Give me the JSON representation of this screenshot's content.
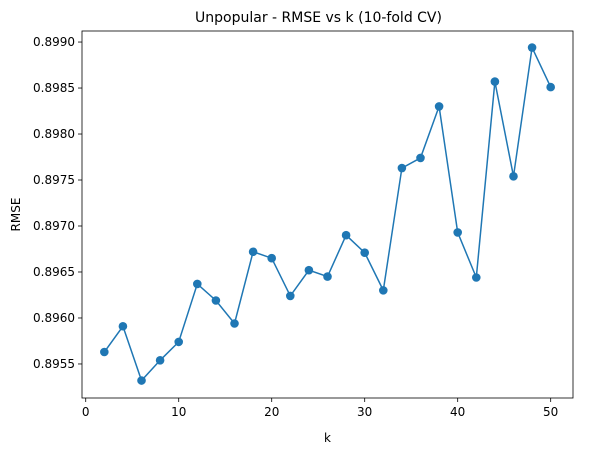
{
  "chart_data": {
    "type": "line",
    "title": "Unpopular - RMSE vs k (10-fold CV)",
    "xlabel": "k",
    "ylabel": "RMSE",
    "xlim": [
      -0.4,
      52.4
    ],
    "ylim": [
      0.89513,
      0.89912
    ],
    "xticks": [
      0,
      10,
      20,
      30,
      40,
      50
    ],
    "xtick_labels": [
      "0",
      "10",
      "20",
      "30",
      "40",
      "50"
    ],
    "yticks": [
      0.8955,
      0.896,
      0.8965,
      0.897,
      0.8975,
      0.898,
      0.8985,
      0.899
    ],
    "ytick_labels": [
      "0.8955",
      "0.8960",
      "0.8965",
      "0.8970",
      "0.8975",
      "0.8980",
      "0.8985",
      "0.8990"
    ],
    "grid": false,
    "color": "#1f77b4",
    "marker": "circle",
    "series": [
      {
        "x": [
          2,
          4,
          6,
          8,
          10,
          12,
          14,
          16,
          18,
          20,
          22,
          24,
          26,
          28,
          30,
          32,
          34,
          36,
          38,
          40,
          42,
          44,
          46,
          48,
          50
        ],
        "y": [
          0.89563,
          0.89591,
          0.89532,
          0.89554,
          0.89574,
          0.89637,
          0.89619,
          0.89594,
          0.89672,
          0.89665,
          0.89624,
          0.89652,
          0.89645,
          0.8969,
          0.89671,
          0.8963,
          0.89763,
          0.89774,
          0.8983,
          0.89693,
          0.89644,
          0.89857,
          0.89754,
          0.89894,
          0.89851
        ]
      }
    ]
  }
}
